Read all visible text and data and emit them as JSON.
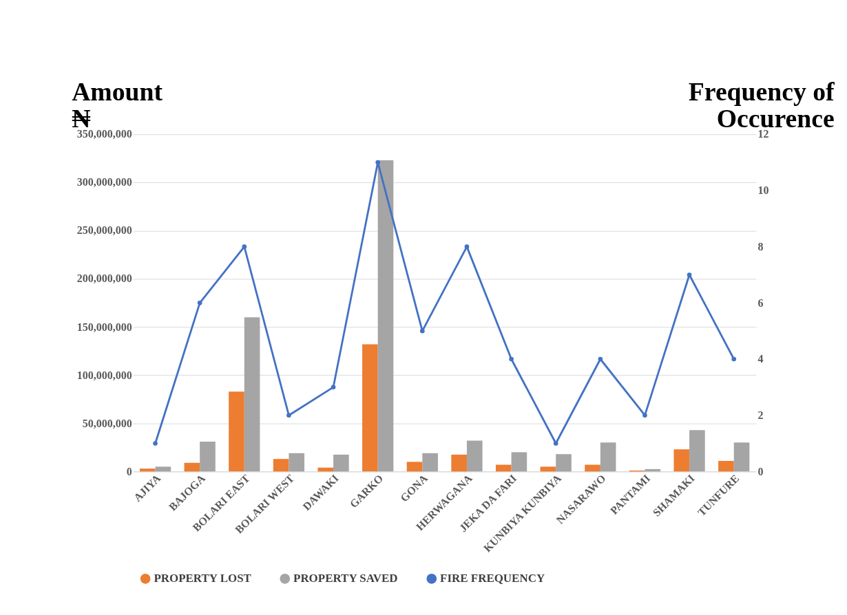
{
  "chart_data": {
    "type": "bar",
    "categories": [
      "AJIYA",
      "BAJOGA",
      "BOLARI EAST",
      "BOLARI WEST",
      "DAWAKI",
      "GARKO",
      "GONA",
      "HERWAGANA",
      "JEKA DA FARI",
      "KUNBIYA KUNBIYA",
      "NASARAWO",
      "PANTAMI",
      "SHAMAKI",
      "TUNFURE"
    ],
    "ylabel": "Amount\n₦",
    "y2label": "Frequency of\nOccurence",
    "series": [
      {
        "name": "PROPERTY LOST",
        "color": "#ed7d31",
        "values": [
          3000000,
          9000000,
          83000000,
          13000000,
          4000000,
          132000000,
          10000000,
          17500000,
          7000000,
          5000000,
          7000000,
          1000000,
          23000000,
          11000000
        ]
      },
      {
        "name": "PROPERTY SAVED",
        "color": "#a5a5a5",
        "values": [
          5000000,
          31000000,
          160000000,
          19000000,
          17500000,
          323000000,
          19000000,
          32000000,
          20000000,
          18000000,
          30000000,
          2500000,
          43000000,
          30000000
        ]
      },
      {
        "name": "FIRE FREQUENCY",
        "type": "line",
        "axis": "y2",
        "marker": "circle",
        "color": "#4472c4",
        "values": [
          1,
          6,
          8,
          2,
          3,
          11,
          5,
          8,
          4,
          1,
          4,
          2,
          7,
          4
        ]
      }
    ],
    "ylim": [
      0,
      350000000
    ],
    "yticks": [
      0,
      {
        "value": 50000000,
        "label": "50,000,000"
      },
      {
        "value": 100000000,
        "label": "100,000,000"
      },
      {
        "value": 150000000,
        "label": "150,000,000"
      },
      {
        "value": 200000000,
        "label": "200,000,000"
      },
      {
        "value": 250000000,
        "label": "250,000,000"
      },
      {
        "value": 300000000,
        "label": "300,000,000"
      },
      {
        "value": 350000000,
        "label": "350,000,000"
      }
    ],
    "y2lim": [
      0,
      12
    ],
    "y2ticks": [
      0,
      2,
      4,
      6,
      8,
      10,
      12
    ],
    "grid": "y",
    "legend": "bottom"
  }
}
